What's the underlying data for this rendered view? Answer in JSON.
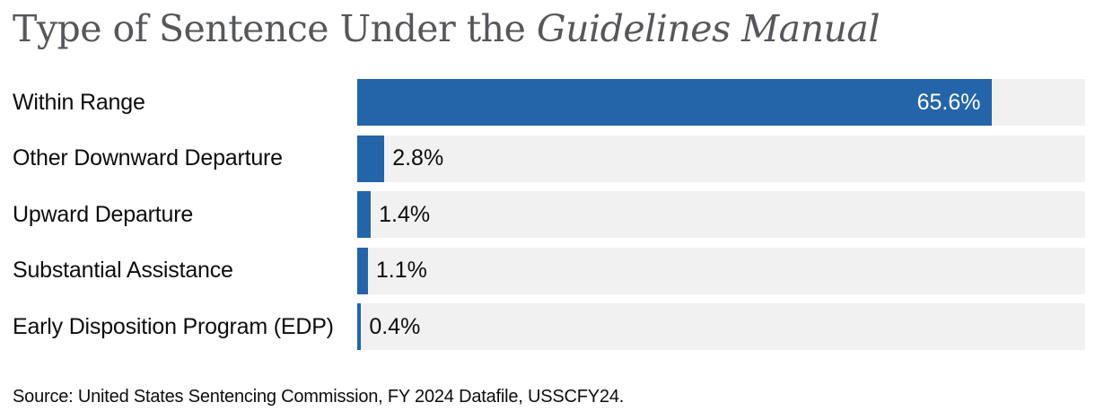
{
  "title": {
    "prefix": "Type of Sentence Under the ",
    "italic_part": "Guidelines Manual"
  },
  "colors": {
    "bar": "#2465a9",
    "track": "#f1f1f2",
    "title_text": "#56575a",
    "label_text": "#0d0d0d",
    "value_on_bar": "#ffffff",
    "background": "#ffffff"
  },
  "chart_data": {
    "type": "bar",
    "orientation": "horizontal",
    "title": "Type of Sentence Under the Guidelines Manual",
    "categories": [
      "Within Range",
      "Other Downward Departure",
      "Upward Departure",
      "Substantial Assistance",
      "Early Disposition Program (EDP)"
    ],
    "values": [
      65.6,
      2.8,
      1.4,
      1.1,
      0.4
    ],
    "value_labels": [
      "65.6%",
      "2.8%",
      "1.4%",
      "1.1%",
      "0.4%"
    ],
    "value_label_inside": [
      true,
      false,
      false,
      false,
      false
    ],
    "unit": "%",
    "xlim": [
      0,
      75.2
    ],
    "grid": false,
    "legend": "none"
  },
  "source": "Source: United States Sentencing Commission, FY 2024 Datafile, USSCFY24."
}
